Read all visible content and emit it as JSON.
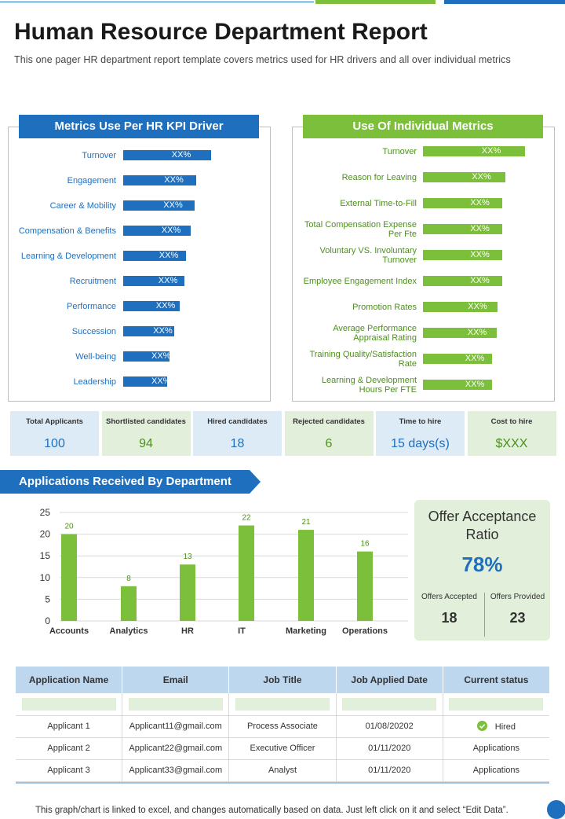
{
  "colors": {
    "blue": "#1f6fbf",
    "green": "#7cbf3a",
    "light_blue": "#ddebf7",
    "light_green": "#e2efda",
    "header_blue": "#bdd7ee"
  },
  "title": "Human Resource Department Report",
  "subtitle": "This one pager HR department report template covers metrics used for HR drivers and all over individual metrics",
  "kpi_driver": {
    "heading": "Metrics Use Per HR KPI Driver",
    "items": [
      {
        "label": "Turnover",
        "value": "XX%",
        "level": 1.0
      },
      {
        "label": "Engagement",
        "value": "XX%",
        "level": 0.83
      },
      {
        "label": "Career & Mobility",
        "value": "XX%",
        "level": 0.81
      },
      {
        "label": "Compensation & Benefits",
        "value": "XX%",
        "level": 0.77
      },
      {
        "label": "Learning & Development",
        "value": "XX%",
        "level": 0.71
      },
      {
        "label": "Recruitment",
        "value": "XX%",
        "level": 0.7
      },
      {
        "label": "Performance",
        "value": "XX%",
        "level": 0.64
      },
      {
        "label": "Succession",
        "value": "XX%",
        "level": 0.58
      },
      {
        "label": "Well-being",
        "value": "XX%",
        "level": 0.53
      },
      {
        "label": "Leadership",
        "value": "XX%",
        "level": 0.5
      }
    ]
  },
  "individual": {
    "heading": "Use Of Individual Metrics",
    "items": [
      {
        "label": "Turnover",
        "value": "XX%",
        "level": 1.0
      },
      {
        "label": "Reason for Leaving",
        "value": "XX%",
        "level": 0.81
      },
      {
        "label": "External Time-to-Fill",
        "value": "XX%",
        "level": 0.78
      },
      {
        "label": "Total Compensation Expense Per Fte",
        "value": "XX%",
        "level": 0.78
      },
      {
        "label": "Voluntary VS. Involuntary Turnover",
        "value": "XX%",
        "level": 0.78
      },
      {
        "label": "Employee Engagement Index",
        "value": "XX%",
        "level": 0.78
      },
      {
        "label": "Promotion Rates",
        "value": "XX%",
        "level": 0.73
      },
      {
        "label": "Average Performance Appraisal Rating",
        "value": "XX%",
        "level": 0.72
      },
      {
        "label": "Training Quality/Satisfaction Rate",
        "value": "XX%",
        "level": 0.68
      },
      {
        "label": "Learning & Development Hours Per FTE",
        "value": "XX%",
        "level": 0.68
      }
    ]
  },
  "kpis": [
    {
      "label": "Total Applicants",
      "value": "100",
      "tone": "blue"
    },
    {
      "label": "Shortlisted candidates",
      "value": "94",
      "tone": "green"
    },
    {
      "label": "Hired candidates",
      "value": "18",
      "tone": "blue"
    },
    {
      "label": "Rejected candidates",
      "value": "6",
      "tone": "green"
    },
    {
      "label": "Time to hire",
      "value": "15 days(s)",
      "tone": "blue"
    },
    {
      "label": "Cost to hire",
      "value": "$XXX",
      "tone": "green"
    }
  ],
  "applications_heading": "Applications Received By Department",
  "chart_data": {
    "type": "bar",
    "title": "Applications Received By Department",
    "categories": [
      "Accounts",
      "Analytics",
      "HR",
      "IT",
      "Marketing",
      "Operations"
    ],
    "values": [
      20,
      8,
      13,
      22,
      21,
      16
    ],
    "ylim": [
      0,
      25
    ],
    "yticks": [
      0,
      5,
      10,
      15,
      20,
      25
    ],
    "xlabel": "",
    "ylabel": "",
    "grid": true
  },
  "offer": {
    "title": "Offer Acceptance Ratio",
    "ratio": "78%",
    "accepted_label": "Offers Accepted",
    "accepted_value": "18",
    "provided_label": "Offers Provided",
    "provided_value": "23"
  },
  "table": {
    "headers": [
      "Application Name",
      "Email",
      "Job Title",
      "Job Applied Date",
      "Current status"
    ],
    "rows": [
      {
        "name": "Applicant 1",
        "email": "Applicant11@gmail.com",
        "job": "Process Associate",
        "date": "01/08/20202",
        "status": "Hired"
      },
      {
        "name": "Applicant 2",
        "email": "Applicant22@gmail.com",
        "job": "Executive Officer",
        "date": "01/11/2020",
        "status": "Applications"
      },
      {
        "name": "Applicant 3",
        "email": "Applicant33@gmail.com",
        "job": "Analyst",
        "date": "01/11/2020",
        "status": "Applications"
      }
    ]
  },
  "footer": "This graph/chart is linked to excel, and changes automatically based on data. Just left click on it and select “Edit Data”."
}
